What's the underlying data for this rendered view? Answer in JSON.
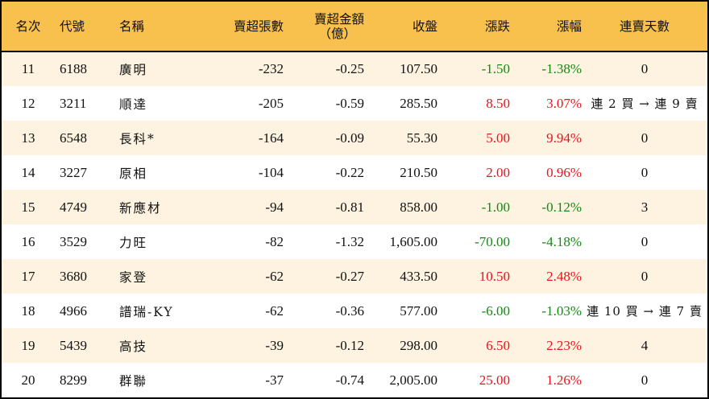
{
  "colors": {
    "header_bg": "#F8C14E",
    "row_odd_bg": "#FDF3E0",
    "row_even_bg": "#FFFFFF",
    "up": "#E8141B",
    "down": "#138A13",
    "border": "#000000"
  },
  "table": {
    "headers": {
      "rank": "名次",
      "code": "代號",
      "name": "名稱",
      "net_sell_lots": "賣超張數",
      "net_sell_amount_line1": "賣超金額",
      "net_sell_amount_line2": "（億）",
      "close": "收盤",
      "change": "漲跌",
      "change_pct": "漲幅",
      "sell_streak": "連賣天數"
    },
    "rows": [
      {
        "rank": "11",
        "code": "6188",
        "name": "廣明",
        "lots": "-232",
        "amount": "-0.25",
        "close": "107.50",
        "change": "-1.50",
        "pct": "-1.38%",
        "dir": "down",
        "streak": "0"
      },
      {
        "rank": "12",
        "code": "3211",
        "name": "順達",
        "lots": "-205",
        "amount": "-0.59",
        "close": "285.50",
        "change": "8.50",
        "pct": "3.07%",
        "dir": "up",
        "streak": "連 2 買 → 連 9 賣"
      },
      {
        "rank": "13",
        "code": "6548",
        "name": "長科*",
        "lots": "-164",
        "amount": "-0.09",
        "close": "55.30",
        "change": "5.00",
        "pct": "9.94%",
        "dir": "up",
        "streak": "0"
      },
      {
        "rank": "14",
        "code": "3227",
        "name": "原相",
        "lots": "-104",
        "amount": "-0.22",
        "close": "210.50",
        "change": "2.00",
        "pct": "0.96%",
        "dir": "up",
        "streak": "0"
      },
      {
        "rank": "15",
        "code": "4749",
        "name": "新應材",
        "lots": "-94",
        "amount": "-0.81",
        "close": "858.00",
        "change": "-1.00",
        "pct": "-0.12%",
        "dir": "down",
        "streak": "3"
      },
      {
        "rank": "16",
        "code": "3529",
        "name": "力旺",
        "lots": "-82",
        "amount": "-1.32",
        "close": "1,605.00",
        "change": "-70.00",
        "pct": "-4.18%",
        "dir": "down",
        "streak": "0"
      },
      {
        "rank": "17",
        "code": "3680",
        "name": "家登",
        "lots": "-62",
        "amount": "-0.27",
        "close": "433.50",
        "change": "10.50",
        "pct": "2.48%",
        "dir": "up",
        "streak": "0"
      },
      {
        "rank": "18",
        "code": "4966",
        "name": "譜瑞-KY",
        "lots": "-62",
        "amount": "-0.36",
        "close": "577.00",
        "change": "-6.00",
        "pct": "-1.03%",
        "dir": "down",
        "streak": "連 10 買 → 連 7 賣"
      },
      {
        "rank": "19",
        "code": "5439",
        "name": "高技",
        "lots": "-39",
        "amount": "-0.12",
        "close": "298.00",
        "change": "6.50",
        "pct": "2.23%",
        "dir": "up",
        "streak": "4"
      },
      {
        "rank": "20",
        "code": "8299",
        "name": "群聯",
        "lots": "-37",
        "amount": "-0.74",
        "close": "2,005.00",
        "change": "25.00",
        "pct": "1.26%",
        "dir": "up",
        "streak": "0"
      }
    ]
  }
}
